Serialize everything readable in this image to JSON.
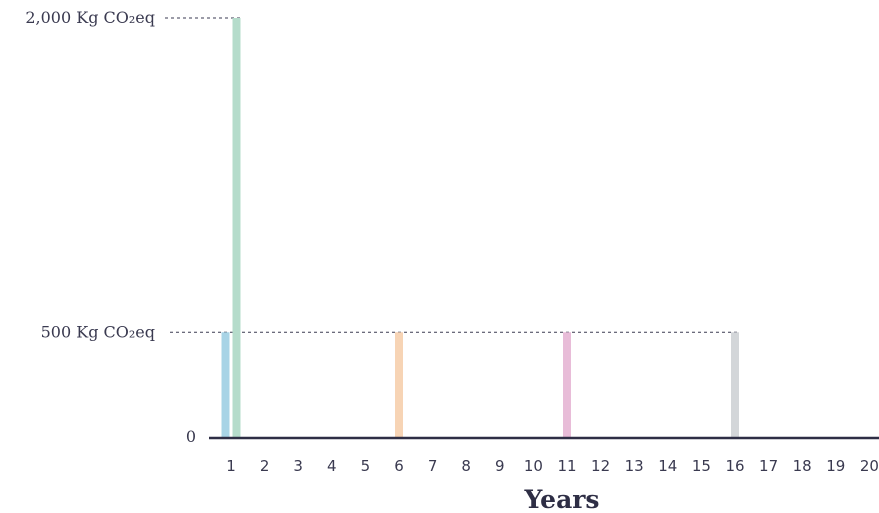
{
  "chart_data": {
    "type": "bar",
    "xlabel": "Years",
    "ylabel": "",
    "categories": [
      "1",
      "2",
      "3",
      "4",
      "5",
      "6",
      "7",
      "8",
      "9",
      "10",
      "11",
      "12",
      "13",
      "14",
      "15",
      "16",
      "17",
      "18",
      "19",
      "20"
    ],
    "y_ticks": [
      {
        "value": 0,
        "label": "0"
      },
      {
        "value": 500,
        "label": "500 Kg CO₂eq"
      },
      {
        "value": 2000,
        "label": "2,000 Kg CO₂eq"
      }
    ],
    "ylim": [
      0,
      2000
    ],
    "grid": false,
    "bars": [
      {
        "year": 1,
        "value": 500,
        "color": "#a8d4e6"
      },
      {
        "year": 1,
        "value": 2000,
        "color": "#b5dccb"
      },
      {
        "year": 6,
        "value": 500,
        "color": "#f7d4b5"
      },
      {
        "year": 11,
        "value": 500,
        "color": "#e8bcd8"
      },
      {
        "year": 16,
        "value": 500,
        "color": "#d3d6d9"
      }
    ],
    "colors": {
      "axis": "#2e2e45",
      "text": "#3a3a50",
      "reference_line": "#3a3a50"
    }
  }
}
